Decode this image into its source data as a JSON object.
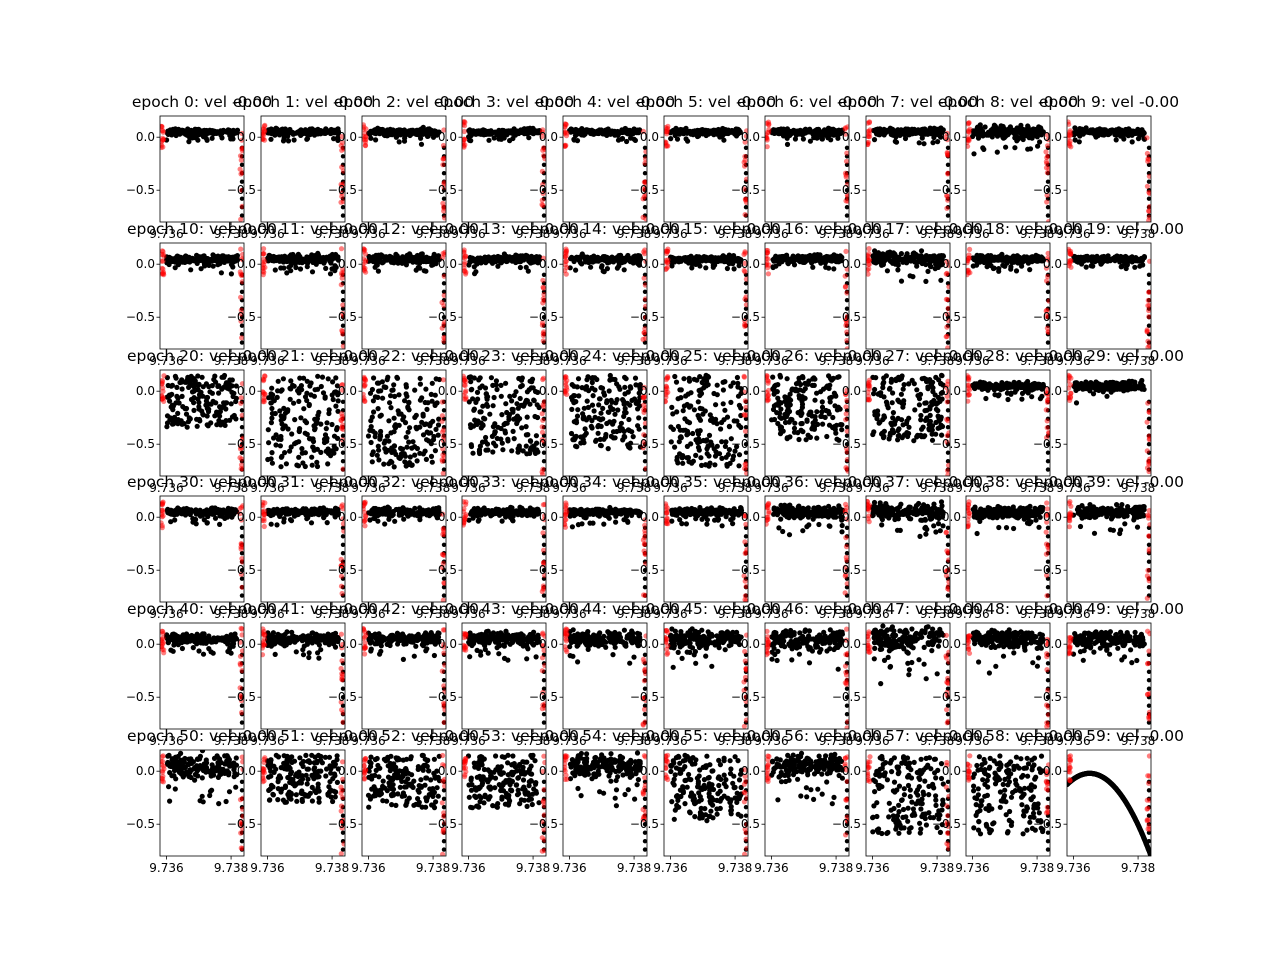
{
  "chart_data": {
    "type": "scatter",
    "grid": {
      "rows": 6,
      "cols": 10
    },
    "title_template": "epoch {n}: vel -0.00",
    "panels": [
      {
        "title": "epoch 0: vel -0.00"
      },
      {
        "title": "epoch 1: vel -0.00"
      },
      {
        "title": "epoch 2: vel -0.00"
      },
      {
        "title": "epoch 3: vel -0.00"
      },
      {
        "title": "epoch 4: vel -0.00"
      },
      {
        "title": "epoch 5: vel -0.00"
      },
      {
        "title": "epoch 6: vel -0.00"
      },
      {
        "title": "epoch 7: vel -0.00"
      },
      {
        "title": "epoch 8: vel -0.00"
      },
      {
        "title": "epoch 9: vel -0.00"
      },
      {
        "title": "epoch 10: vel -0.00"
      },
      {
        "title": "epoch 11: vel -0.00"
      },
      {
        "title": "epoch 12: vel -0.00"
      },
      {
        "title": "epoch 13: vel -0.00"
      },
      {
        "title": "epoch 14: vel -0.00"
      },
      {
        "title": "epoch 15: vel -0.00"
      },
      {
        "title": "epoch 16: vel -0.00"
      },
      {
        "title": "epoch 17: vel -0.00"
      },
      {
        "title": "epoch 18: vel -0.00"
      },
      {
        "title": "epoch 19: vel -0.00"
      },
      {
        "title": "epoch 20: vel -0.00"
      },
      {
        "title": "epoch 21: vel -0.00"
      },
      {
        "title": "epoch 22: vel -0.00"
      },
      {
        "title": "epoch 23: vel -0.00"
      },
      {
        "title": "epoch 24: vel -0.00"
      },
      {
        "title": "epoch 25: vel -0.00"
      },
      {
        "title": "epoch 26: vel -0.00"
      },
      {
        "title": "epoch 27: vel -0.00"
      },
      {
        "title": "epoch 28: vel -0.00"
      },
      {
        "title": "epoch 29: vel -0.00"
      },
      {
        "title": "epoch 30: vel -0.00"
      },
      {
        "title": "epoch 31: vel -0.00"
      },
      {
        "title": "epoch 32: vel -0.00"
      },
      {
        "title": "epoch 33: vel -0.00"
      },
      {
        "title": "epoch 34: vel -0.00"
      },
      {
        "title": "epoch 35: vel -0.00"
      },
      {
        "title": "epoch 36: vel -0.00"
      },
      {
        "title": "epoch 37: vel -0.00"
      },
      {
        "title": "epoch 38: vel -0.00"
      },
      {
        "title": "epoch 39: vel -0.00"
      },
      {
        "title": "epoch 40: vel -0.00"
      },
      {
        "title": "epoch 41: vel -0.00"
      },
      {
        "title": "epoch 42: vel -0.00"
      },
      {
        "title": "epoch 43: vel -0.00"
      },
      {
        "title": "epoch 44: vel -0.00"
      },
      {
        "title": "epoch 45: vel -0.00"
      },
      {
        "title": "epoch 46: vel -0.00"
      },
      {
        "title": "epoch 47: vel -0.00"
      },
      {
        "title": "epoch 48: vel -0.00"
      },
      {
        "title": "epoch 49: vel -0.00"
      },
      {
        "title": "epoch 50: vel -0.00"
      },
      {
        "title": "epoch 51: vel -0.00"
      },
      {
        "title": "epoch 52: vel -0.00"
      },
      {
        "title": "epoch 53: vel -0.00"
      },
      {
        "title": "epoch 54: vel -0.00"
      },
      {
        "title": "epoch 55: vel -0.00"
      },
      {
        "title": "epoch 56: vel -0.00"
      },
      {
        "title": "epoch 57: vel -0.00"
      },
      {
        "title": "epoch 58: vel -0.00"
      },
      {
        "title": "epoch 59: vel -0.00"
      }
    ],
    "xlim": [
      9.7358,
      9.7384
    ],
    "ylim": [
      -0.8,
      0.2
    ],
    "xticks": [
      9.736,
      9.738
    ],
    "xtick_labels": [
      "9.736",
      "9.738"
    ],
    "yticks": [
      0.0,
      -0.5
    ],
    "ytick_labels": [
      "0.0",
      "−0.5"
    ],
    "grid_lines": false,
    "legend": "none",
    "series": [
      {
        "role": "samples",
        "color": "#000000"
      },
      {
        "role": "boundary-markers",
        "color": "#ff0000",
        "alpha": 0.5
      }
    ],
    "spread_by_epoch": [
      0.04,
      0.04,
      0.045,
      0.04,
      0.04,
      0.04,
      0.04,
      0.045,
      0.09,
      0.045,
      0.05,
      0.06,
      0.06,
      0.05,
      0.05,
      0.04,
      0.05,
      0.09,
      0.05,
      0.04,
      0.2,
      0.35,
      0.35,
      0.3,
      0.28,
      0.35,
      0.25,
      0.25,
      0.05,
      0.06,
      0.05,
      0.05,
      0.05,
      0.05,
      0.05,
      0.05,
      0.08,
      0.1,
      0.08,
      0.08,
      0.06,
      0.08,
      0.08,
      0.1,
      0.1,
      0.12,
      0.12,
      0.15,
      0.12,
      0.1,
      0.15,
      0.18,
      0.2,
      0.2,
      0.15,
      0.25,
      0.15,
      0.3,
      0.3,
      0
    ],
    "final_epoch_curve": {
      "x_peak": 9.7365,
      "y_peak": -0.02,
      "y_at_right_edge": -0.8
    },
    "accent_colors": {
      "points": "#000000",
      "red": "#ff0000"
    }
  }
}
